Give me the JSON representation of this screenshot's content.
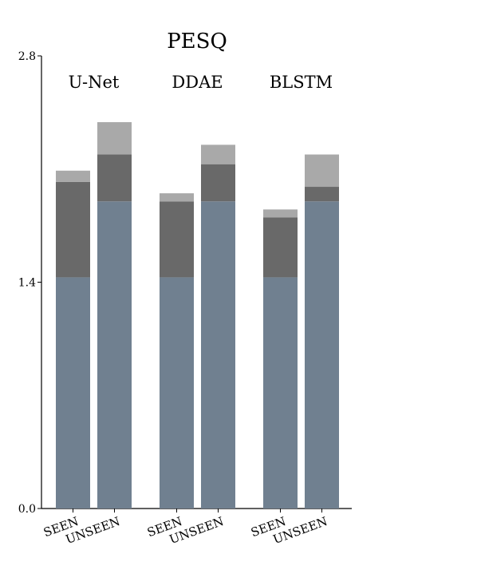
{
  "chart_data": {
    "type": "stacked_bar",
    "title": "PESQ",
    "groups": [
      "U-Net",
      "DDAE",
      "BLSTM"
    ],
    "categories": [
      "SEEN",
      "UNSEEN",
      "SEEN",
      "UNSEEN",
      "SEEN",
      "UNSEEN"
    ],
    "series": [
      {
        "color": "#708090",
        "values": [
          1.43,
          1.9,
          1.43,
          1.9,
          1.43,
          1.9
        ]
      },
      {
        "color": "#696969",
        "values": [
          0.59,
          0.29,
          0.47,
          0.23,
          0.37,
          0.09
        ]
      },
      {
        "color": "#a9a9a9",
        "values": [
          0.07,
          0.2,
          0.05,
          0.12,
          0.05,
          0.2
        ]
      }
    ],
    "ylim": [
      0,
      2.8
    ],
    "yticks": [
      {
        "value": 0,
        "label": "0.0"
      },
      1.4,
      2.8
    ]
  }
}
